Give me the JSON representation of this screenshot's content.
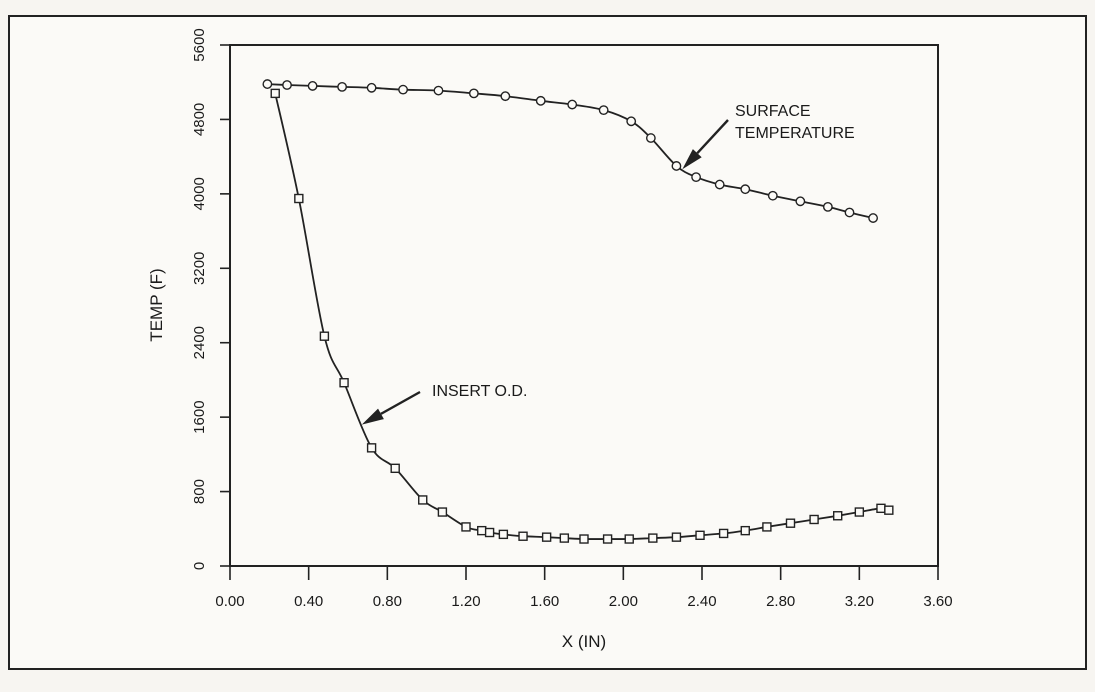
{
  "chart_data": {
    "type": "line",
    "xlabel": "X (IN)",
    "ylabel": "TEMP (F)",
    "xlim": [
      0.0,
      3.6
    ],
    "ylim": [
      0,
      5600
    ],
    "x_ticks": [
      "0.00",
      "0.40",
      "0.80",
      "1.20",
      "1.60",
      "2.00",
      "2.40",
      "2.80",
      "3.20",
      "3.60"
    ],
    "y_ticks": [
      "0",
      "800",
      "1600",
      "2400",
      "3200",
      "4000",
      "4800",
      "5600"
    ],
    "grid": false,
    "series": [
      {
        "name": "SURFACE TEMPERATURE",
        "marker": "circle",
        "x": [
          0.19,
          0.29,
          0.42,
          0.57,
          0.72,
          0.88,
          1.06,
          1.24,
          1.4,
          1.58,
          1.74,
          1.9,
          2.04,
          2.14,
          2.27,
          2.37,
          2.49,
          2.62,
          2.76,
          2.9,
          3.04,
          3.15,
          3.27
        ],
        "y": [
          5180,
          5170,
          5160,
          5150,
          5140,
          5120,
          5110,
          5080,
          5050,
          5000,
          4960,
          4900,
          4780,
          4600,
          4300,
          4180,
          4100,
          4050,
          3980,
          3920,
          3860,
          3800,
          3740
        ]
      },
      {
        "name": "INSERT O.D.",
        "marker": "square",
        "x": [
          0.23,
          0.35,
          0.48,
          0.58,
          0.72,
          0.84,
          0.98,
          1.08,
          1.2,
          1.28,
          1.32,
          1.39,
          1.49,
          1.61,
          1.7,
          1.8,
          1.92,
          2.03,
          2.15,
          2.27,
          2.39,
          2.51,
          2.62,
          2.73,
          2.85,
          2.97,
          3.09,
          3.2,
          3.31,
          3.35
        ],
        "y": [
          5080,
          3950,
          2470,
          1970,
          1270,
          1050,
          710,
          580,
          420,
          380,
          360,
          340,
          320,
          310,
          300,
          290,
          290,
          290,
          300,
          310,
          330,
          350,
          380,
          420,
          460,
          500,
          540,
          580,
          620,
          600
        ]
      }
    ],
    "annotations": [
      {
        "text_lines": [
          "SURFACE",
          "TEMPERATURE"
        ],
        "series": "SURFACE TEMPERATURE",
        "points_to_x": 2.3
      },
      {
        "text_lines": [
          "INSERT O.D."
        ],
        "series": "INSERT O.D.",
        "points_to_x": 0.67
      }
    ]
  }
}
